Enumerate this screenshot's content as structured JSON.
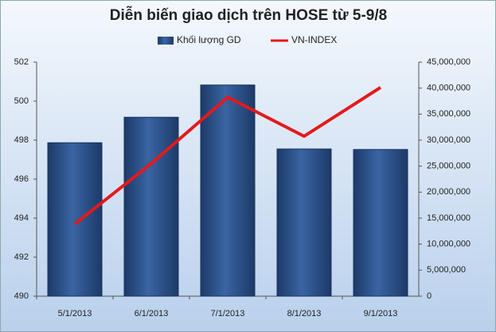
{
  "chart_data": {
    "type": "bar_line",
    "title": "Diễn biến giao dịch trên HOSE từ 5-9/8",
    "categories": [
      "5/1/2013",
      "6/1/2013",
      "7/1/2013",
      "8/1/2013",
      "9/1/2013"
    ],
    "series": [
      {
        "name": "Khối lượng GD",
        "color": "#2a4f86",
        "type": "bar",
        "axis": "y2",
        "values": [
          29500000,
          34400000,
          40600000,
          28300000,
          28200000
        ]
      },
      {
        "name": "VN-INDEX",
        "color": "#e31a1c",
        "type": "line",
        "axis": "y",
        "values": [
          493.7,
          496.8,
          500.2,
          498.2,
          500.7
        ]
      }
    ],
    "ylim": [
      490,
      502
    ],
    "yticks": [
      490,
      492,
      494,
      496,
      498,
      500,
      502
    ],
    "y2lim": [
      0,
      45000000
    ],
    "y2ticks": [
      0,
      {
        "value": 5000000,
        "label": "5,000,000"
      },
      {
        "value": 10000000,
        "label": "10,000,000"
      },
      {
        "value": 15000000,
        "label": "15,000,000"
      },
      {
        "value": 20000000,
        "label": "20,000,000"
      },
      {
        "value": 25000000,
        "label": "25,000,000"
      },
      {
        "value": 30000000,
        "label": "30,000,000"
      },
      {
        "value": 35000000,
        "label": "35,000,000"
      },
      {
        "value": 40000000,
        "label": "40,000,000"
      },
      {
        "value": 45000000,
        "label": "45,000,000"
      }
    ]
  }
}
